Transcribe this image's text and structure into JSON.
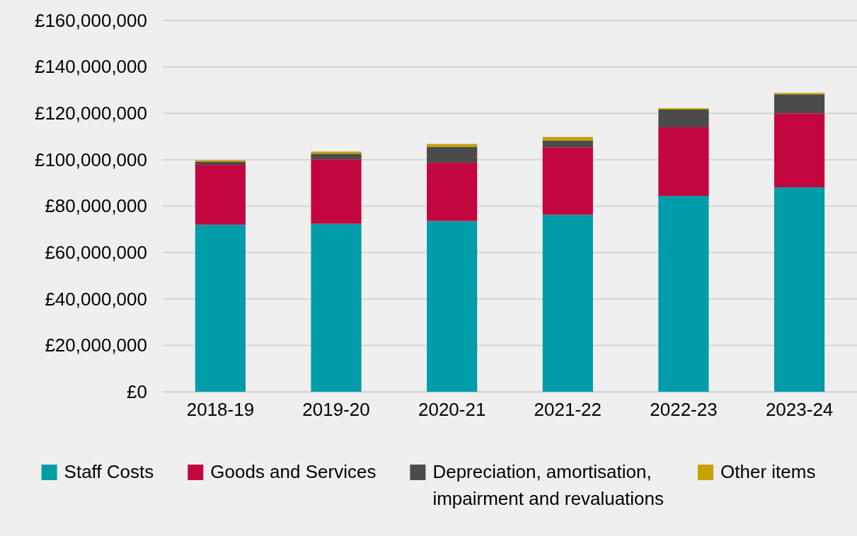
{
  "chart_data": {
    "type": "bar",
    "stacked": true,
    "categories": [
      "2018-19",
      "2019-20",
      "2020-21",
      "2021-22",
      "2022-23",
      "2023-24"
    ],
    "series": [
      {
        "name": "Staff Costs",
        "color": "#009ca9",
        "values": [
          72000000,
          72400000,
          73600000,
          76300000,
          84400000,
          88100000
        ]
      },
      {
        "name": "Goods and Services",
        "color": "#c3063f",
        "values": [
          25800000,
          27800000,
          25100000,
          29100000,
          29600000,
          31900000
        ]
      },
      {
        "name": "Depreciation, amortisation, impairment and revaluations",
        "color": "#4b4b4a",
        "values": [
          1400000,
          2400000,
          6900000,
          2900000,
          7600000,
          8200000
        ]
      },
      {
        "name": "Other items",
        "color": "#c8a000",
        "values": [
          600000,
          900000,
          1200000,
          1500000,
          600000,
          600000
        ]
      }
    ],
    "ylim": [
      0,
      160000000
    ],
    "yticks": [
      {
        "value": 0,
        "label": "£0"
      },
      {
        "value": 20000000,
        "label": "£20,000,000"
      },
      {
        "value": 40000000,
        "label": "£40,000,000"
      },
      {
        "value": 60000000,
        "label": "£60,000,000"
      },
      {
        "value": 80000000,
        "label": "£80,000,000"
      },
      {
        "value": 100000000,
        "label": "£100,000,000"
      },
      {
        "value": 120000000,
        "label": "£120,000,000"
      },
      {
        "value": 140000000,
        "label": "£140,000,000"
      },
      {
        "value": 160000000,
        "label": "£160,000,000"
      }
    ],
    "grid": "y",
    "legend": "bottom"
  }
}
